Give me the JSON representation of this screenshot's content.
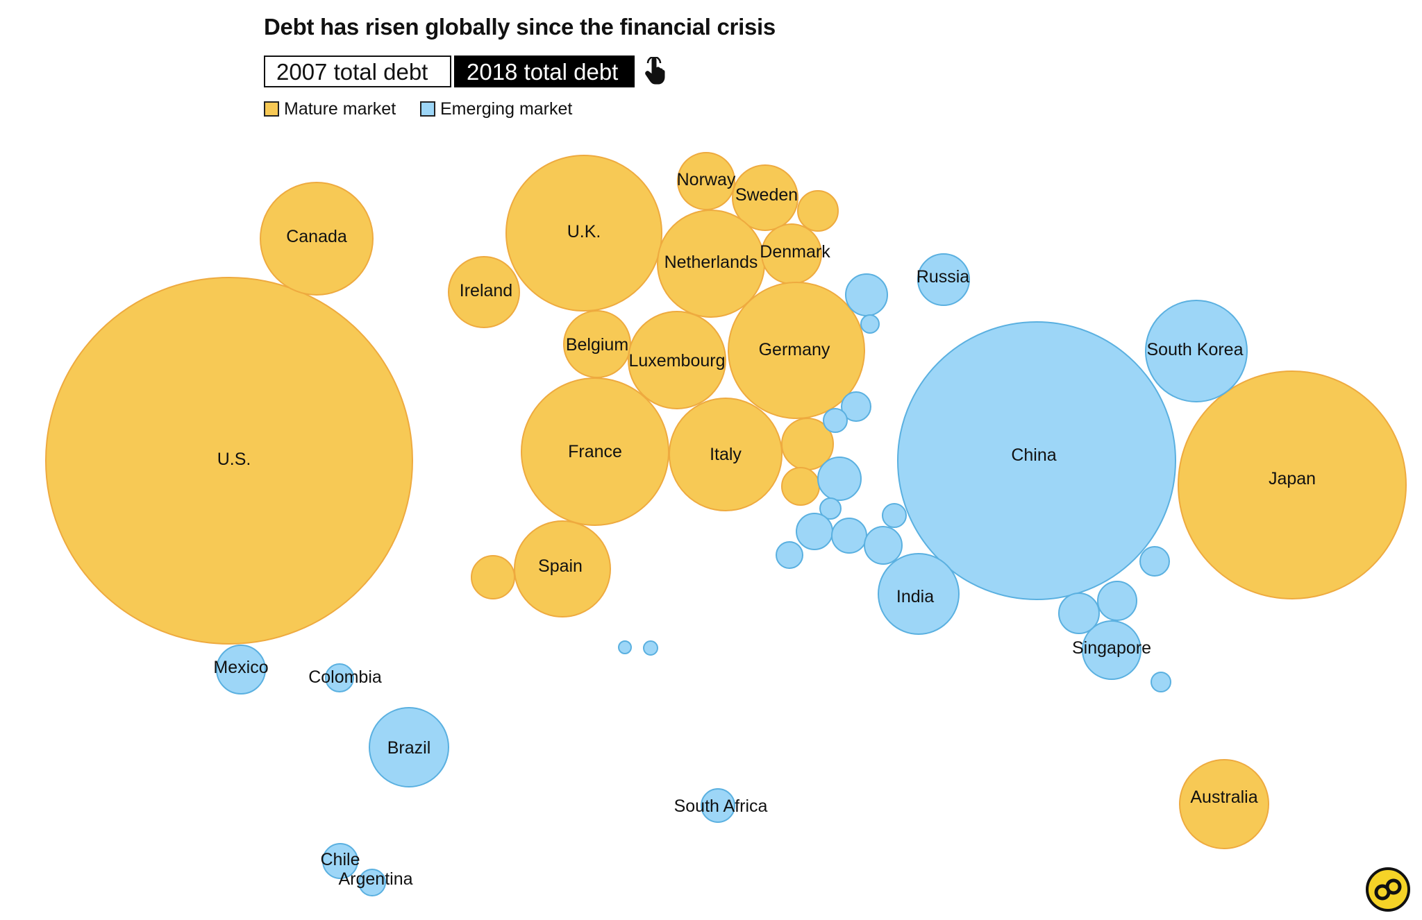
{
  "title": "Debt has risen globally since the financial crisis",
  "toggle": {
    "option_2007": "2007 total debt",
    "option_2018": "2018 total debt",
    "selected": "2018 total debt"
  },
  "legend": {
    "mature": "Mature market",
    "emerging": "Emerging market"
  },
  "colors": {
    "mature_fill": "#f7c955",
    "mature_stroke": "#eeaa3f",
    "emerging_fill": "#9dd6f7",
    "emerging_stroke": "#5ab0e0",
    "selected_bg": "#000000",
    "logo_bg": "#f5d327"
  },
  "icons": {
    "pointer": "hand-pointer-icon",
    "logo": "brand-logo-icon"
  },
  "chart_data": {
    "type": "bubble",
    "title": "Debt has risen globally since the financial crisis",
    "legend": [
      "Mature market",
      "Emerging market"
    ],
    "legend_placement": "top-left",
    "selected_view": "2018 total debt",
    "bubbles": [
      {
        "label": "U.S.",
        "market": "mature",
        "size": 264
      },
      {
        "label": "Canada",
        "market": "mature",
        "size": 81
      },
      {
        "label": "U.K.",
        "market": "mature",
        "size": 112
      },
      {
        "label": "Ireland",
        "market": "mature",
        "size": 51
      },
      {
        "label": "Norway",
        "market": "mature",
        "size": 41
      },
      {
        "label": "Sweden",
        "market": "mature",
        "size": 47
      },
      {
        "label": "",
        "market": "mature",
        "size": 29
      },
      {
        "label": "Netherlands",
        "market": "mature",
        "size": 77
      },
      {
        "label": "Denmark",
        "market": "mature",
        "size": 43
      },
      {
        "label": "Belgium",
        "market": "mature",
        "size": 48
      },
      {
        "label": "Luxembourg",
        "market": "mature",
        "size": 70
      },
      {
        "label": "Germany",
        "market": "mature",
        "size": 98
      },
      {
        "label": "France",
        "market": "mature",
        "size": 106
      },
      {
        "label": "Italy",
        "market": "mature",
        "size": 81
      },
      {
        "label": "",
        "market": "mature",
        "size": 37
      },
      {
        "label": "",
        "market": "mature",
        "size": 27
      },
      {
        "label": "Spain",
        "market": "mature",
        "size": 69
      },
      {
        "label": "",
        "market": "mature",
        "size": 31
      },
      {
        "label": "Japan",
        "market": "mature",
        "size": 164
      },
      {
        "label": "Australia",
        "market": "mature",
        "size": 64
      },
      {
        "label": "China",
        "market": "emerging",
        "size": 200
      },
      {
        "label": "South Korea",
        "market": "emerging",
        "size": 73
      },
      {
        "label": "Russia",
        "market": "emerging",
        "size": 37
      },
      {
        "label": "India",
        "market": "emerging",
        "size": 58
      },
      {
        "label": "Singapore",
        "market": "emerging",
        "size": 42
      },
      {
        "label": "Mexico",
        "market": "emerging",
        "size": 35
      },
      {
        "label": "Colombia",
        "market": "emerging",
        "size": 20
      },
      {
        "label": "Brazil",
        "market": "emerging",
        "size": 57
      },
      {
        "label": "South Africa",
        "market": "emerging",
        "size": 24
      },
      {
        "label": "Chile",
        "market": "emerging",
        "size": 25
      },
      {
        "label": "Argentina",
        "market": "emerging",
        "size": 19
      },
      {
        "label": "",
        "market": "emerging",
        "size": 30
      },
      {
        "label": "",
        "market": "emerging",
        "size": 13
      },
      {
        "label": "",
        "market": "emerging",
        "size": 21
      },
      {
        "label": "",
        "market": "emerging",
        "size": 17
      },
      {
        "label": "",
        "market": "emerging",
        "size": 31
      },
      {
        "label": "",
        "market": "emerging",
        "size": 15
      },
      {
        "label": "",
        "market": "emerging",
        "size": 26
      },
      {
        "label": "",
        "market": "emerging",
        "size": 25
      },
      {
        "label": "",
        "market": "emerging",
        "size": 19
      },
      {
        "label": "",
        "market": "emerging",
        "size": 17
      },
      {
        "label": "",
        "market": "emerging",
        "size": 27
      },
      {
        "label": "",
        "market": "emerging",
        "size": 21
      },
      {
        "label": "",
        "market": "emerging",
        "size": 28
      },
      {
        "label": "",
        "market": "emerging",
        "size": 29
      },
      {
        "label": "",
        "market": "emerging",
        "size": 14
      },
      {
        "label": "",
        "market": "emerging",
        "size": 9
      },
      {
        "label": "",
        "market": "emerging",
        "size": 10
      }
    ]
  }
}
